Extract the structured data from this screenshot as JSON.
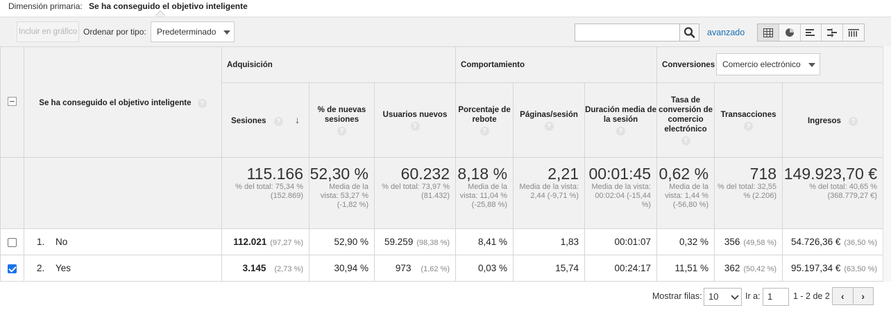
{
  "dimension": {
    "label": "Dimensión primaria:",
    "value": "Se ha conseguido el objetivo inteligente"
  },
  "toolbar": {
    "plot_button": "Incluir en gráfico",
    "sort_label": "Ordenar por tipo:",
    "sort_value": "Predeterminado",
    "search_value": "",
    "advanced_link": "avanzado",
    "view_icons": [
      "table-icon",
      "pie-icon",
      "bar-icon",
      "comparison-icon",
      "pivot-icon"
    ]
  },
  "table": {
    "groups": {
      "acquisition": "Adquisición",
      "behavior": "Comportamiento",
      "conversions": "Conversiones",
      "conversions_select": "Comercio electrónico"
    },
    "dimension_header": "Se ha conseguido el objetivo inteligente",
    "help_glyph": "?",
    "sort_arrow": "↓",
    "columns": [
      "Sesiones",
      "% de nuevas sesiones",
      "Usuarios nuevos",
      "Porcentaje de rebote",
      "Páginas/sesión",
      "Duración media de la sesión",
      "Tasa de conversión de comercio electrónico",
      "Transacciones",
      "Ingresos"
    ],
    "totals": [
      {
        "value": "115.166",
        "sub": "% del total: 75,34 % (152.869)"
      },
      {
        "value": "52,30 %",
        "sub": "Media de la vista: 53,27 % (-1,82 %)"
      },
      {
        "value": "60.232",
        "sub": "% del total: 73,97 % (81.432)"
      },
      {
        "value": "8,18 %",
        "sub": "Media de la vista: 11,04 % (-25,88 %)"
      },
      {
        "value": "2,21",
        "sub": "Media de la vista: 2,44 (-9,71 %)"
      },
      {
        "value": "00:01:45",
        "sub": "Media de la vista: 00:02:04 (-15,44 %)"
      },
      {
        "value": "0,62 %",
        "sub": "Media de la vista: 1,44 % (-56,80 %)"
      },
      {
        "value": "718",
        "sub": "% del total: 32,55 % (2.206)"
      },
      {
        "value": "149.923,70 €",
        "sub": "% del total: 40,65 % (368.779,27 €)"
      }
    ],
    "rows": [
      {
        "index": "1.",
        "name": "No",
        "checked": false,
        "sessions": "112.021",
        "sessions_pct": "(97,27 %)",
        "new_sessions": "52,90 %",
        "new_users": "59.259",
        "new_users_pct": "(98,38 %)",
        "bounce": "8,41 %",
        "pages": "1,83",
        "duration": "00:01:07",
        "conv_rate": "0,32 %",
        "transactions": "356",
        "transactions_pct": "(49,58 %)",
        "revenue": "54.726,36 €",
        "revenue_pct": "(36,50 %)"
      },
      {
        "index": "2.",
        "name": "Yes",
        "checked": true,
        "sessions": "3.145",
        "sessions_pct": "(2,73 %)",
        "new_sessions": "30,94 %",
        "new_users": "973",
        "new_users_pct": "(1,62 %)",
        "bounce": "0,03 %",
        "pages": "15,74",
        "duration": "00:24:17",
        "conv_rate": "11,51 %",
        "transactions": "362",
        "transactions_pct": "(50,42 %)",
        "revenue": "95.197,34 €",
        "revenue_pct": "(63,50 %)"
      }
    ]
  },
  "footer": {
    "rows_label": "Mostrar filas:",
    "rows_value": "10",
    "goto_label": "Ir a:",
    "goto_value": "1",
    "range": "1 - 2 de 2",
    "prev": "‹",
    "next": "›"
  }
}
